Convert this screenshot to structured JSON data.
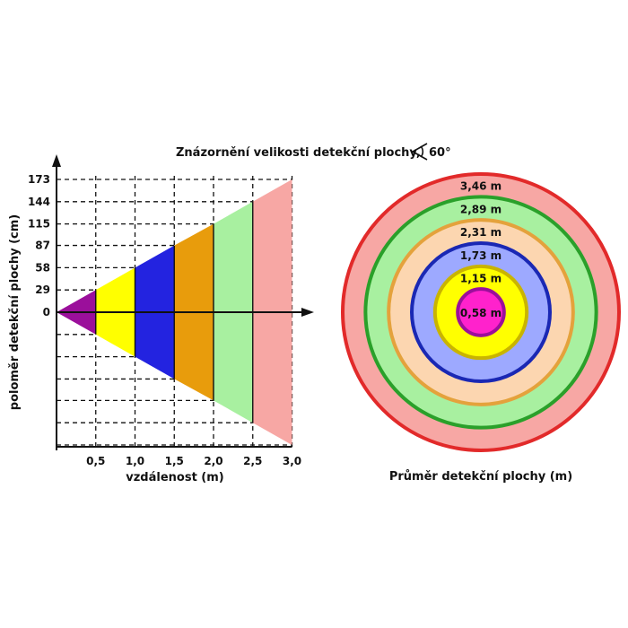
{
  "title": "Znázornění velikosti detekční plochy,",
  "angle_label": "60°",
  "colors": {
    "purple": "#9b0f9b",
    "yellow": "#ffff00",
    "blue": "#2323e0",
    "orange": "#e89c0c",
    "green": "#a8f0a0",
    "pink": "#f7a7a4",
    "magenta": "#ff22cc",
    "ring_yellow_edge": "#c9b400",
    "ring_blue_edge": "#1a28b4",
    "ring_orange_edge": "#e4a23c",
    "ring_green_edge": "#2aa02a",
    "ring_red_edge": "#e22a2a",
    "ring_peach": "#fcd6b0",
    "ring_lightblue": "#9da9ff"
  },
  "chart_data": [
    {
      "type": "area",
      "xlabel": "vzdálenost (m)",
      "ylabel": "poloměr detekční plochy (cm)",
      "x_ticks": [
        "0,5",
        "1,0",
        "1,5",
        "2,0",
        "2,5",
        "3,0"
      ],
      "y_ticks": [
        "0",
        "29",
        "58",
        "87",
        "115",
        "144",
        "173"
      ],
      "xlim": [
        0,
        3.0
      ],
      "ylim": [
        -173,
        173
      ],
      "grid": true,
      "segments": [
        {
          "x0": 0,
          "x1": 0.5,
          "r0": 0,
          "r1": 29,
          "color": "purple"
        },
        {
          "x0": 0.5,
          "x1": 1.0,
          "r0": 29,
          "r1": 58,
          "color": "yellow"
        },
        {
          "x0": 1.0,
          "x1": 1.5,
          "r0": 58,
          "r1": 87,
          "color": "blue"
        },
        {
          "x0": 1.5,
          "x1": 2.0,
          "r0": 87,
          "r1": 115,
          "color": "orange"
        },
        {
          "x0": 2.0,
          "x1": 2.5,
          "r0": 115,
          "r1": 144,
          "color": "green"
        },
        {
          "x0": 2.5,
          "x1": 3.0,
          "r0": 144,
          "r1": 173,
          "color": "pink"
        }
      ]
    },
    {
      "type": "concentric",
      "xlabel": "Průměr detekční plochy (m)",
      "rings": [
        {
          "label": "3,46 m",
          "value": 3.46,
          "fill": "pink",
          "stroke": "ring_red_edge"
        },
        {
          "label": "2,89 m",
          "value": 2.89,
          "fill": "green",
          "stroke": "ring_green_edge"
        },
        {
          "label": "2,31 m",
          "value": 2.31,
          "fill": "ring_peach",
          "stroke": "ring_orange_edge"
        },
        {
          "label": "1,73 m",
          "value": 1.73,
          "fill": "ring_lightblue",
          "stroke": "ring_blue_edge"
        },
        {
          "label": "1,15 m",
          "value": 1.15,
          "fill": "yellow",
          "stroke": "ring_yellow_edge"
        },
        {
          "label": "0,58 m",
          "value": 0.58,
          "fill": "magenta",
          "stroke": "purple"
        }
      ]
    }
  ]
}
